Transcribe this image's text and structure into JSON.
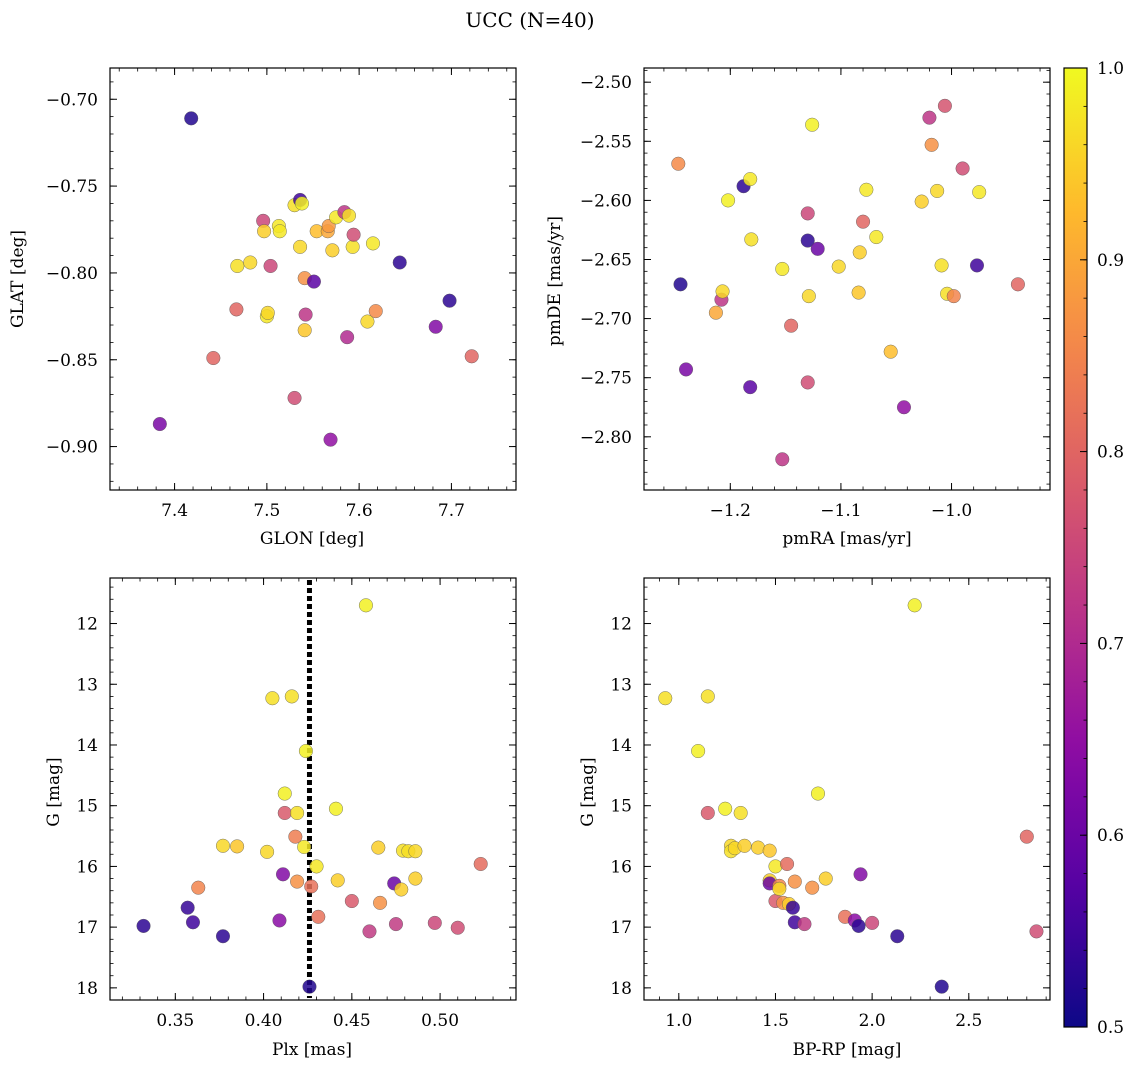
{
  "figure": {
    "title": "UCC (N=40)",
    "colorbar": {
      "colormap": "plasma",
      "range": [
        0.5,
        1.0
      ],
      "ticks": [
        "0.5",
        "0.6",
        "0.7",
        "0.8",
        "0.9",
        "1.0"
      ]
    }
  },
  "chart_data": [
    {
      "type": "scatter",
      "title": "",
      "xlabel": "GLON [deg]",
      "ylabel": "GLAT [deg]",
      "xlim": [
        7.33,
        7.77
      ],
      "ylim": [
        -0.925,
        -0.682
      ],
      "xticks": [
        "7.4",
        "7.5",
        "7.6",
        "7.7"
      ],
      "yticks": [
        "−0.70",
        "−0.75",
        "−0.80",
        "−0.85",
        "−0.90"
      ],
      "points": [
        {
          "x": 7.418,
          "y": -0.711,
          "c": 0.52
        },
        {
          "x": 7.384,
          "y": -0.887,
          "c": 0.62
        },
        {
          "x": 7.442,
          "y": -0.849,
          "c": 0.8
        },
        {
          "x": 7.467,
          "y": -0.821,
          "c": 0.8
        },
        {
          "x": 7.468,
          "y": -0.796,
          "c": 0.97
        },
        {
          "x": 7.482,
          "y": -0.794,
          "c": 0.96
        },
        {
          "x": 7.496,
          "y": -0.77,
          "c": 0.75
        },
        {
          "x": 7.497,
          "y": -0.776,
          "c": 0.95
        },
        {
          "x": 7.5,
          "y": -0.825,
          "c": 0.98
        },
        {
          "x": 7.501,
          "y": -0.823,
          "c": 0.96
        },
        {
          "x": 7.504,
          "y": -0.796,
          "c": 0.75
        },
        {
          "x": 7.513,
          "y": -0.773,
          "c": 0.98
        },
        {
          "x": 7.514,
          "y": -0.776,
          "c": 0.98
        },
        {
          "x": 7.53,
          "y": -0.761,
          "c": 0.97
        },
        {
          "x": 7.53,
          "y": -0.872,
          "c": 0.76
        },
        {
          "x": 7.536,
          "y": -0.758,
          "c": 0.55
        },
        {
          "x": 7.536,
          "y": -0.785,
          "c": 0.96
        },
        {
          "x": 7.538,
          "y": -0.76,
          "c": 0.99
        },
        {
          "x": 7.541,
          "y": -0.803,
          "c": 0.87
        },
        {
          "x": 7.541,
          "y": -0.833,
          "c": 0.94
        },
        {
          "x": 7.542,
          "y": -0.824,
          "c": 0.72
        },
        {
          "x": 7.551,
          "y": -0.805,
          "c": 0.58
        },
        {
          "x": 7.554,
          "y": -0.776,
          "c": 0.93
        },
        {
          "x": 7.566,
          "y": -0.776,
          "c": 0.9
        },
        {
          "x": 7.567,
          "y": -0.773,
          "c": 0.88
        },
        {
          "x": 7.569,
          "y": -0.896,
          "c": 0.65
        },
        {
          "x": 7.571,
          "y": -0.787,
          "c": 0.95
        },
        {
          "x": 7.575,
          "y": -0.768,
          "c": 0.98
        },
        {
          "x": 7.584,
          "y": -0.765,
          "c": 0.72
        },
        {
          "x": 7.587,
          "y": -0.837,
          "c": 0.7
        },
        {
          "x": 7.589,
          "y": -0.767,
          "c": 0.97
        },
        {
          "x": 7.593,
          "y": -0.785,
          "c": 0.97
        },
        {
          "x": 7.594,
          "y": -0.778,
          "c": 0.76
        },
        {
          "x": 7.609,
          "y": -0.828,
          "c": 0.96
        },
        {
          "x": 7.615,
          "y": -0.783,
          "c": 0.98
        },
        {
          "x": 7.618,
          "y": -0.822,
          "c": 0.86
        },
        {
          "x": 7.644,
          "y": -0.794,
          "c": 0.53
        },
        {
          "x": 7.683,
          "y": -0.831,
          "c": 0.63
        },
        {
          "x": 7.698,
          "y": -0.816,
          "c": 0.53
        },
        {
          "x": 7.722,
          "y": -0.848,
          "c": 0.8
        }
      ]
    },
    {
      "type": "scatter",
      "title": "",
      "xlabel": "pmRA [mas/yr]",
      "ylabel": "pmDE [mas/yr]",
      "xlim": [
        -1.278,
        -0.911
      ],
      "ylim": [
        -2.845,
        -2.488
      ],
      "xticks": [
        "−1.2",
        "−1.1",
        "−1.0"
      ],
      "yticks": [
        "−2.50",
        "−2.55",
        "−2.60",
        "−2.65",
        "−2.70",
        "−2.75",
        "−2.80"
      ],
      "points": [
        {
          "x": -1.247,
          "y": -2.569,
          "c": 0.86
        },
        {
          "x": -1.245,
          "y": -2.671,
          "c": 0.52
        },
        {
          "x": -1.24,
          "y": -2.743,
          "c": 0.62
        },
        {
          "x": -1.213,
          "y": -2.695,
          "c": 0.9
        },
        {
          "x": -1.208,
          "y": -2.684,
          "c": 0.72
        },
        {
          "x": -1.207,
          "y": -2.677,
          "c": 0.96
        },
        {
          "x": -1.202,
          "y": -2.6,
          "c": 0.99
        },
        {
          "x": -1.188,
          "y": -2.588,
          "c": 0.53
        },
        {
          "x": -1.182,
          "y": -2.582,
          "c": 0.98
        },
        {
          "x": -1.181,
          "y": -2.633,
          "c": 0.97
        },
        {
          "x": -1.182,
          "y": -2.758,
          "c": 0.58
        },
        {
          "x": -1.153,
          "y": -2.658,
          "c": 0.98
        },
        {
          "x": -1.153,
          "y": -2.819,
          "c": 0.72
        },
        {
          "x": -1.145,
          "y": -2.706,
          "c": 0.8
        },
        {
          "x": -1.13,
          "y": -2.611,
          "c": 0.75
        },
        {
          "x": -1.13,
          "y": -2.634,
          "c": 0.53
        },
        {
          "x": -1.129,
          "y": -2.681,
          "c": 0.96
        },
        {
          "x": -1.13,
          "y": -2.754,
          "c": 0.76
        },
        {
          "x": -1.126,
          "y": -2.536,
          "c": 0.99
        },
        {
          "x": -1.121,
          "y": -2.641,
          "c": 0.6
        },
        {
          "x": -1.102,
          "y": -2.656,
          "c": 0.96
        },
        {
          "x": -1.083,
          "y": -2.644,
          "c": 0.95
        },
        {
          "x": -1.084,
          "y": -2.678,
          "c": 0.94
        },
        {
          "x": -1.08,
          "y": -2.618,
          "c": 0.8
        },
        {
          "x": -1.077,
          "y": -2.591,
          "c": 0.98
        },
        {
          "x": -1.068,
          "y": -2.631,
          "c": 0.98
        },
        {
          "x": -1.055,
          "y": -2.728,
          "c": 0.93
        },
        {
          "x": -1.043,
          "y": -2.775,
          "c": 0.65
        },
        {
          "x": -1.027,
          "y": -2.601,
          "c": 0.95
        },
        {
          "x": -1.02,
          "y": -2.53,
          "c": 0.72
        },
        {
          "x": -1.018,
          "y": -2.553,
          "c": 0.87
        },
        {
          "x": -1.013,
          "y": -2.592,
          "c": 0.96
        },
        {
          "x": -1.009,
          "y": -2.655,
          "c": 0.97
        },
        {
          "x": -1.006,
          "y": -2.52,
          "c": 0.77
        },
        {
          "x": -1.004,
          "y": -2.679,
          "c": 0.97
        },
        {
          "x": -0.998,
          "y": -2.681,
          "c": 0.85
        },
        {
          "x": -0.99,
          "y": -2.573,
          "c": 0.76
        },
        {
          "x": -0.977,
          "y": -2.655,
          "c": 0.55
        },
        {
          "x": -0.975,
          "y": -2.593,
          "c": 0.98
        },
        {
          "x": -0.94,
          "y": -2.671,
          "c": 0.8
        }
      ]
    },
    {
      "type": "scatter",
      "title": "",
      "xlabel": "Plx [mas]",
      "ylabel": "G [mag]",
      "xlim": [
        0.313,
        0.543
      ],
      "ylim": [
        18.2,
        11.25
      ],
      "xticks": [
        "0.35",
        "0.40",
        "0.45",
        "0.50"
      ],
      "yticks": [
        "12",
        "13",
        "14",
        "15",
        "16",
        "17",
        "18"
      ],
      "vline": {
        "x": 0.426,
        "style": "dotted",
        "color": "#000000"
      },
      "points": [
        {
          "x": 0.332,
          "y": 16.98,
          "c": 0.53
        },
        {
          "x": 0.357,
          "y": 16.68,
          "c": 0.54
        },
        {
          "x": 0.36,
          "y": 16.92,
          "c": 0.55
        },
        {
          "x": 0.363,
          "y": 16.35,
          "c": 0.85
        },
        {
          "x": 0.377,
          "y": 17.15,
          "c": 0.53
        },
        {
          "x": 0.377,
          "y": 15.66,
          "c": 0.96
        },
        {
          "x": 0.385,
          "y": 15.67,
          "c": 0.94
        },
        {
          "x": 0.402,
          "y": 15.76,
          "c": 0.96
        },
        {
          "x": 0.405,
          "y": 13.23,
          "c": 0.97
        },
        {
          "x": 0.409,
          "y": 16.89,
          "c": 0.64
        },
        {
          "x": 0.411,
          "y": 16.13,
          "c": 0.63
        },
        {
          "x": 0.412,
          "y": 15.12,
          "c": 0.78
        },
        {
          "x": 0.412,
          "y": 14.8,
          "c": 0.99
        },
        {
          "x": 0.416,
          "y": 13.2,
          "c": 0.97
        },
        {
          "x": 0.418,
          "y": 15.51,
          "c": 0.84
        },
        {
          "x": 0.419,
          "y": 15.12,
          "c": 0.97
        },
        {
          "x": 0.419,
          "y": 16.25,
          "c": 0.87
        },
        {
          "x": 0.423,
          "y": 15.68,
          "c": 0.98
        },
        {
          "x": 0.424,
          "y": 14.1,
          "c": 0.99
        },
        {
          "x": 0.427,
          "y": 16.33,
          "c": 0.82
        },
        {
          "x": 0.426,
          "y": 17.98,
          "c": 0.52
        },
        {
          "x": 0.43,
          "y": 16.0,
          "c": 0.98
        },
        {
          "x": 0.431,
          "y": 16.83,
          "c": 0.82
        },
        {
          "x": 0.441,
          "y": 15.05,
          "c": 0.99
        },
        {
          "x": 0.442,
          "y": 16.23,
          "c": 0.95
        },
        {
          "x": 0.45,
          "y": 16.57,
          "c": 0.78
        },
        {
          "x": 0.458,
          "y": 11.7,
          "c": 0.99
        },
        {
          "x": 0.46,
          "y": 17.07,
          "c": 0.73
        },
        {
          "x": 0.465,
          "y": 15.69,
          "c": 0.95
        },
        {
          "x": 0.466,
          "y": 16.6,
          "c": 0.87
        },
        {
          "x": 0.474,
          "y": 16.28,
          "c": 0.6
        },
        {
          "x": 0.475,
          "y": 16.95,
          "c": 0.73
        },
        {
          "x": 0.478,
          "y": 16.38,
          "c": 0.95
        },
        {
          "x": 0.479,
          "y": 15.74,
          "c": 0.97
        },
        {
          "x": 0.482,
          "y": 15.75,
          "c": 0.97
        },
        {
          "x": 0.486,
          "y": 15.75,
          "c": 0.96
        },
        {
          "x": 0.486,
          "y": 16.2,
          "c": 0.95
        },
        {
          "x": 0.497,
          "y": 16.93,
          "c": 0.75
        },
        {
          "x": 0.51,
          "y": 17.01,
          "c": 0.76
        },
        {
          "x": 0.523,
          "y": 15.96,
          "c": 0.81
        }
      ]
    },
    {
      "type": "scatter",
      "title": "",
      "xlabel": "BP-RP [mag]",
      "ylabel": "G [mag]",
      "xlim": [
        0.82,
        2.92
      ],
      "ylim": [
        18.2,
        11.25
      ],
      "xticks": [
        "1.0",
        "1.5",
        "2.0",
        "2.5"
      ],
      "yticks": [
        "12",
        "13",
        "14",
        "15",
        "16",
        "17",
        "18"
      ],
      "points": [
        {
          "x": 0.93,
          "y": 13.23,
          "c": 0.97
        },
        {
          "x": 1.1,
          "y": 14.1,
          "c": 0.99
        },
        {
          "x": 1.15,
          "y": 13.2,
          "c": 0.97
        },
        {
          "x": 1.15,
          "y": 15.12,
          "c": 0.78
        },
        {
          "x": 1.24,
          "y": 15.05,
          "c": 0.99
        },
        {
          "x": 1.27,
          "y": 15.66,
          "c": 0.96
        },
        {
          "x": 1.27,
          "y": 15.75,
          "c": 0.97
        },
        {
          "x": 1.29,
          "y": 15.7,
          "c": 0.96
        },
        {
          "x": 1.32,
          "y": 15.12,
          "c": 0.97
        },
        {
          "x": 1.34,
          "y": 15.66,
          "c": 0.95
        },
        {
          "x": 1.41,
          "y": 15.69,
          "c": 0.95
        },
        {
          "x": 1.47,
          "y": 15.74,
          "c": 0.94
        },
        {
          "x": 1.47,
          "y": 16.23,
          "c": 0.95
        },
        {
          "x": 1.47,
          "y": 16.28,
          "c": 0.6
        },
        {
          "x": 1.5,
          "y": 16.0,
          "c": 0.98
        },
        {
          "x": 1.5,
          "y": 16.57,
          "c": 0.78
        },
        {
          "x": 1.52,
          "y": 16.32,
          "c": 0.85
        },
        {
          "x": 1.52,
          "y": 16.37,
          "c": 0.96
        },
        {
          "x": 1.54,
          "y": 16.6,
          "c": 0.87
        },
        {
          "x": 1.56,
          "y": 15.96,
          "c": 0.81
        },
        {
          "x": 1.57,
          "y": 16.62,
          "c": 0.95
        },
        {
          "x": 1.59,
          "y": 16.68,
          "c": 0.54
        },
        {
          "x": 1.6,
          "y": 16.92,
          "c": 0.55
        },
        {
          "x": 1.6,
          "y": 16.25,
          "c": 0.87
        },
        {
          "x": 1.65,
          "y": 16.95,
          "c": 0.73
        },
        {
          "x": 1.69,
          "y": 16.35,
          "c": 0.87
        },
        {
          "x": 1.72,
          "y": 14.8,
          "c": 0.99
        },
        {
          "x": 1.76,
          "y": 16.2,
          "c": 0.95
        },
        {
          "x": 1.86,
          "y": 16.83,
          "c": 0.82
        },
        {
          "x": 1.91,
          "y": 16.89,
          "c": 0.64
        },
        {
          "x": 1.93,
          "y": 16.98,
          "c": 0.53
        },
        {
          "x": 1.94,
          "y": 16.13,
          "c": 0.63
        },
        {
          "x": 2.0,
          "y": 16.93,
          "c": 0.75
        },
        {
          "x": 2.13,
          "y": 17.15,
          "c": 0.53
        },
        {
          "x": 2.22,
          "y": 11.7,
          "c": 0.99
        },
        {
          "x": 2.36,
          "y": 17.98,
          "c": 0.52
        },
        {
          "x": 2.8,
          "y": 15.51,
          "c": 0.8
        },
        {
          "x": 2.85,
          "y": 17.07,
          "c": 0.76
        }
      ]
    }
  ]
}
